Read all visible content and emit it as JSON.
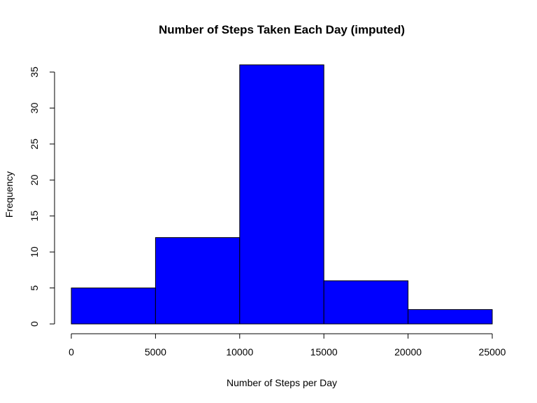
{
  "chart_data": {
    "type": "bar",
    "title": "Number of Steps Taken Each Day (imputed)",
    "xlabel": "Number of Steps per Day",
    "ylabel": "Frequency",
    "bins": [
      {
        "from": 0,
        "to": 5000,
        "value": 5
      },
      {
        "from": 5000,
        "to": 10000,
        "value": 12
      },
      {
        "from": 10000,
        "to": 15000,
        "value": 36
      },
      {
        "from": 15000,
        "to": 20000,
        "value": 6
      },
      {
        "from": 20000,
        "to": 25000,
        "value": 2
      }
    ],
    "xticks": [
      "0",
      "5000",
      "10000",
      "15000",
      "20000",
      "25000"
    ],
    "yticks": [
      "0",
      "5",
      "10",
      "15",
      "20",
      "25",
      "30",
      "35"
    ],
    "xlim": [
      0,
      25000
    ],
    "ylim": [
      0,
      35
    ],
    "bar_color": "#0000ff",
    "grid": false
  }
}
